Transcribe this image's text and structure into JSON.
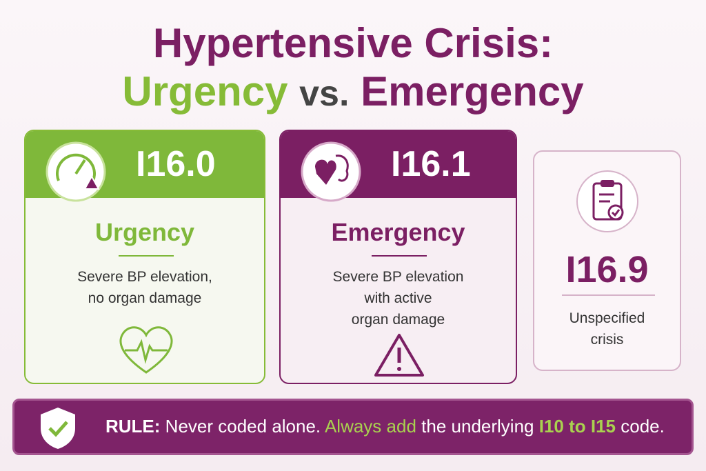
{
  "title": {
    "line1": "Hypertensive Crisis:",
    "urgency": "Urgency",
    "vs": "vs.",
    "emergency": "Emergency"
  },
  "cards": [
    {
      "code": "I16.0",
      "label": "Urgency",
      "description": [
        "Severe BP elevation,",
        "no organ damage"
      ]
    },
    {
      "code": "I16.1",
      "label": "Emergency",
      "description": [
        "Severe BP elevation",
        "with active",
        "organ damage"
      ]
    },
    {
      "code": "I16.9",
      "description": [
        "Unspecified",
        "crisis"
      ]
    }
  ],
  "rule": {
    "label": "RULE:",
    "text": [
      "Never coded alone.",
      "Always add",
      "the underlying",
      "I10 to I15",
      "code."
    ]
  }
}
